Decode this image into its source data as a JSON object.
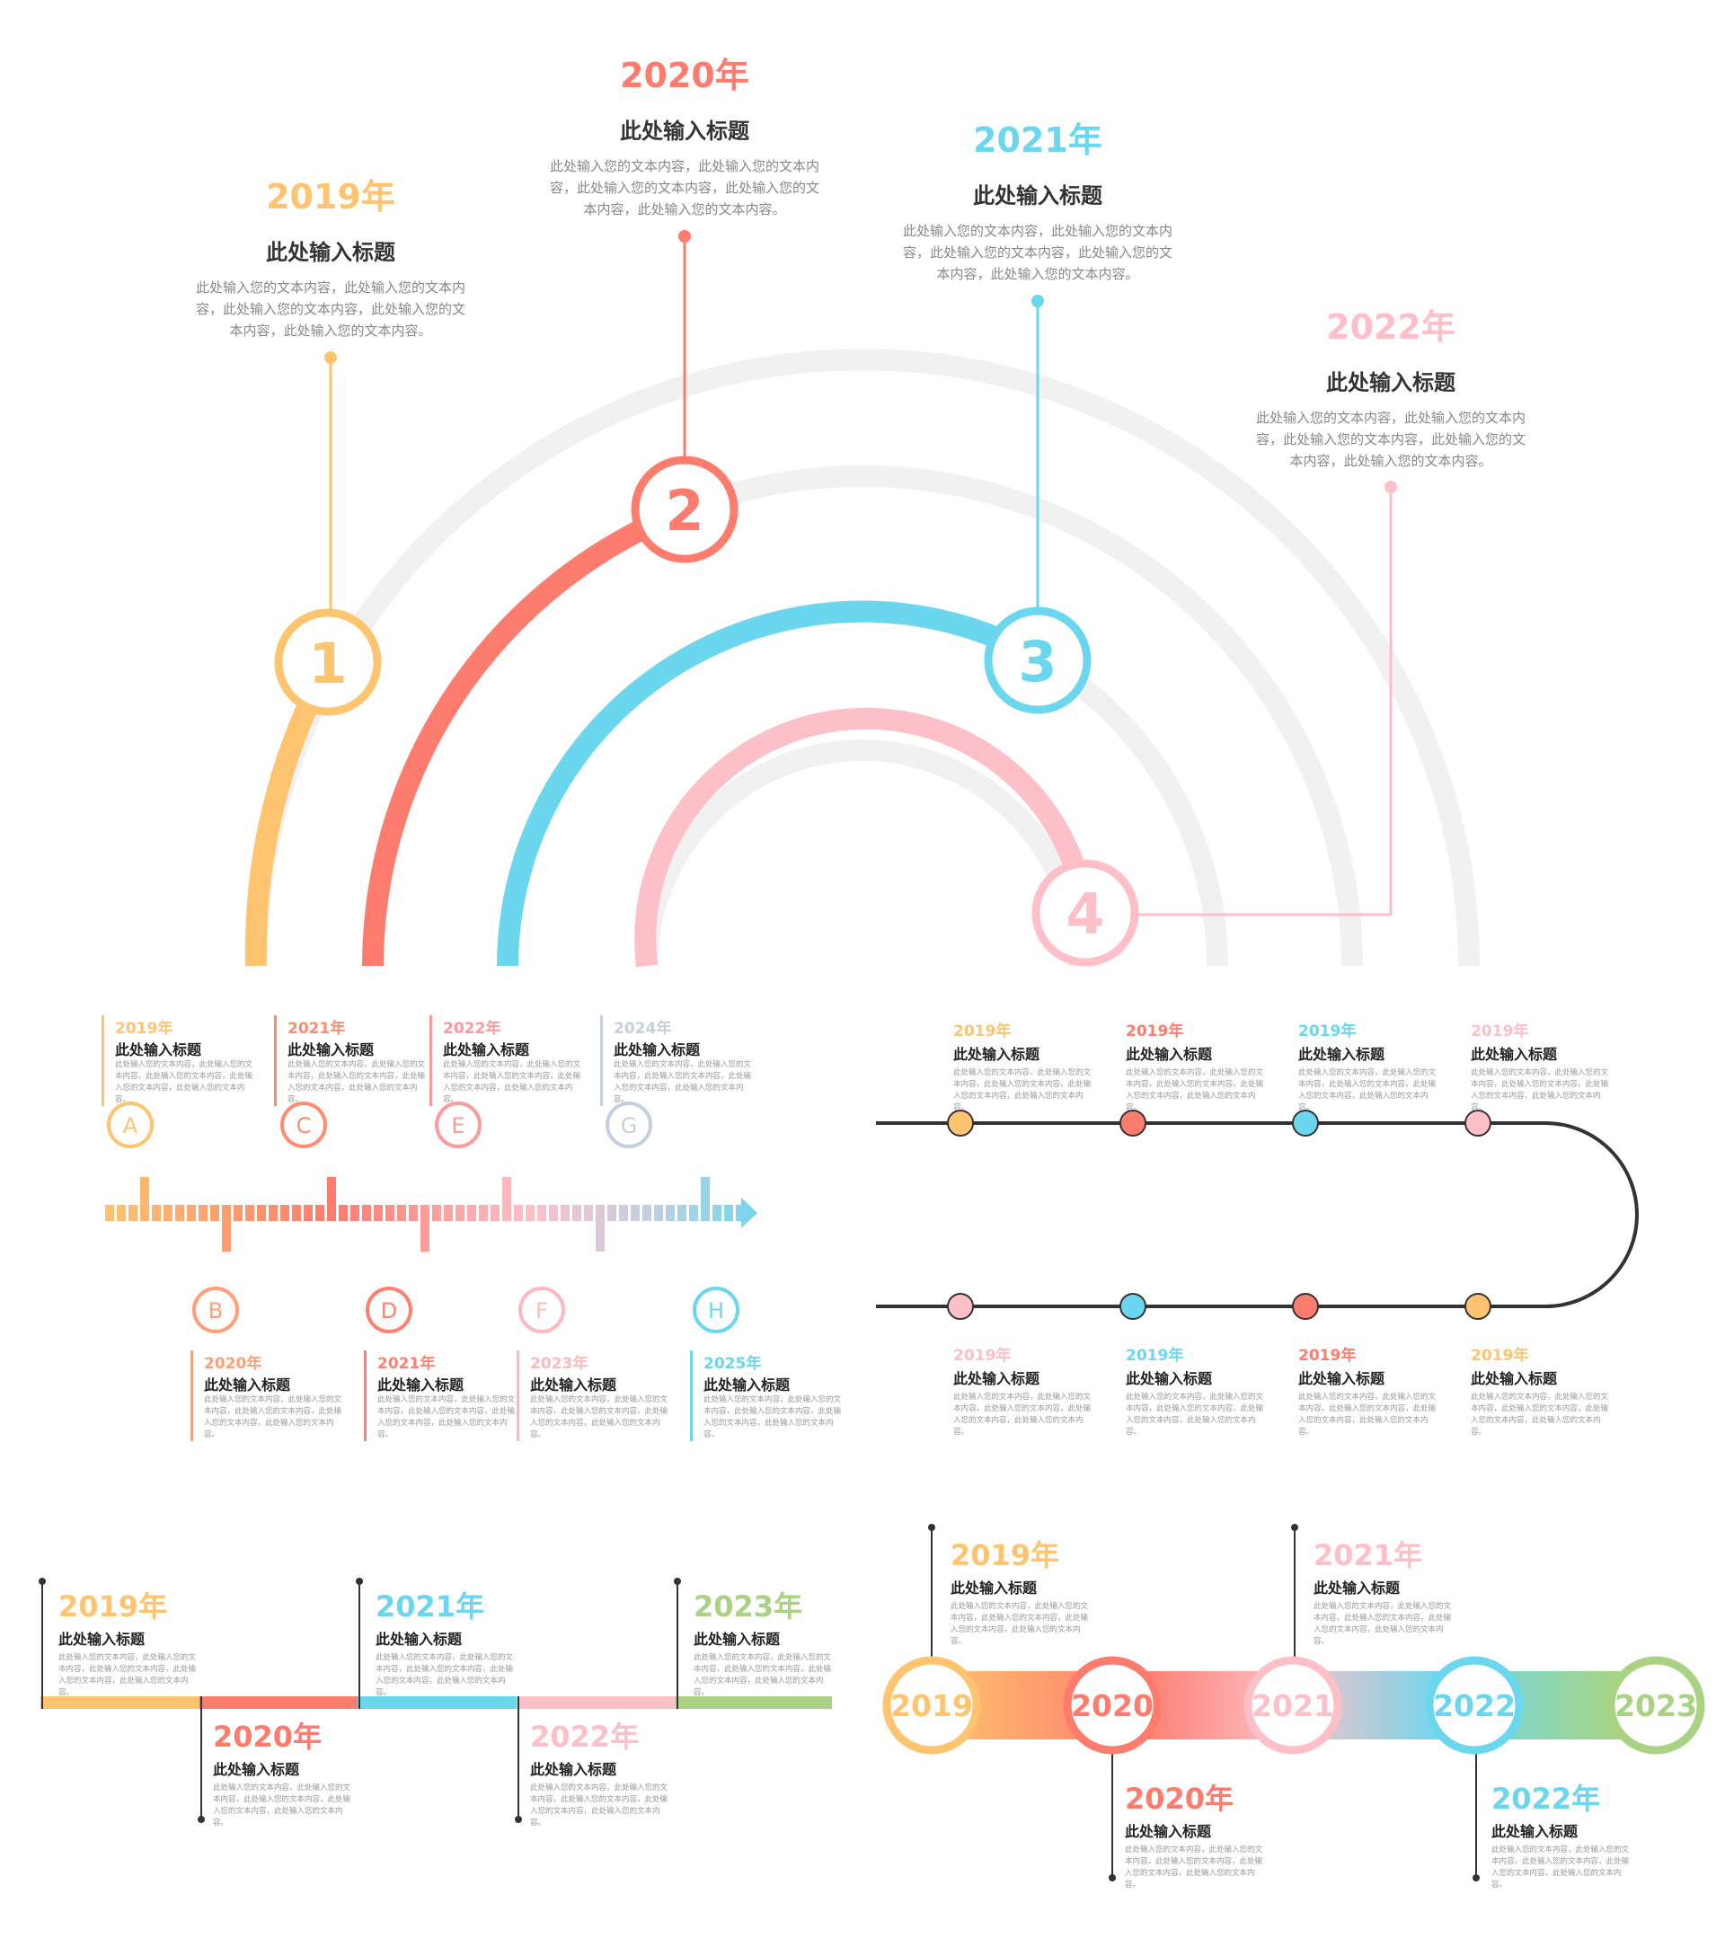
{
  "colors": {
    "yellow": "#fec46f",
    "red": "#fd7c6e",
    "blue": "#6bd7ee",
    "pink": "#fdc0c8",
    "green": "#a9d382",
    "grey": "#f1f1f1",
    "dark": "#333333",
    "lavender": "#c4cfe0"
  },
  "arc": {
    "items": [
      {
        "num": "1",
        "year": "2019年",
        "title": "此处输入标题",
        "body": "此处输入您的文本内容，此处输入您的文本内容，此处输入您的文本内容，此处输入您的文本内容，此处输入您的文本内容。",
        "color": "#fec46f"
      },
      {
        "num": "2",
        "year": "2020年",
        "title": "此处输入标题",
        "body": "此处输入您的文本内容，此处输入您的文本内容，此处输入您的文本内容，此处输入您的文本内容，此处输入您的文本内容。",
        "color": "#fd7c6e"
      },
      {
        "num": "3",
        "year": "2021年",
        "title": "此处输入标题",
        "body": "此处输入您的文本内容，此处输入您的文本内容，此处输入您的文本内容，此处输入您的文本内容，此处输入您的文本内容。",
        "color": "#6bd7ee"
      },
      {
        "num": "4",
        "year": "2022年",
        "title": "此处输入标题",
        "body": "此处输入您的文本内容，此处输入您的文本内容，此处输入您的文本内容，此处输入您的文本内容，此处输入您的文本内容。",
        "color": "#fdc0c8"
      }
    ]
  },
  "barcode": {
    "top": [
      {
        "letter": "A",
        "year": "2019年",
        "title": "此处输入标题",
        "body": "此处输入您的文本内容，此处输入您的文本内容，此处输入您的文本内容，此处输入您的文本内容，此处输入您的文本内容。",
        "color": "#fec46f"
      },
      {
        "letter": "C",
        "year": "2021年",
        "title": "此处输入标题",
        "body": "此处输入您的文本内容，此处输入您的文本内容，此处输入您的文本内容，此处输入您的文本内容，此处输入您的文本内容。",
        "color": "#fd8d6e"
      },
      {
        "letter": "E",
        "year": "2022年",
        "title": "此处输入标题",
        "body": "此处输入您的文本内容，此处输入您的文本内容，此处输入您的文本内容，此处输入您的文本内容，此处输入您的文本内容。",
        "color": "#fd9a9c"
      },
      {
        "letter": "G",
        "year": "2024年",
        "title": "此处输入标题",
        "body": "此处输入您的文本内容，此处输入您的文本内容，此处输入您的文本内容，此处输入您的文本内容，此处输入您的文本内容。",
        "color": "#c4cfe0"
      }
    ],
    "bottom": [
      {
        "letter": "B",
        "year": "2020年",
        "title": "此处输入标题",
        "body": "此处输入您的文本内容，此处输入您的文本内容，此处输入您的文本内容，此处输入您的文本内容，此处输入您的文本内容。",
        "color": "#fda078"
      },
      {
        "letter": "D",
        "year": "2021年",
        "title": "此处输入标题",
        "body": "此处输入您的文本内容，此处输入您的文本内容，此处输入您的文本内容，此处输入您的文本内容，此处输入您的文本内容。",
        "color": "#fd8170"
      },
      {
        "letter": "F",
        "year": "2023年",
        "title": "此处输入标题",
        "body": "此处输入您的文本内容，此处输入您的文本内容，此处输入您的文本内容，此处输入您的文本内容，此处输入您的文本内容。",
        "color": "#fdb8c0"
      },
      {
        "letter": "H",
        "year": "2025年",
        "title": "此处输入标题",
        "body": "此处输入您的文本内容，此处输入您的文本内容，此处输入您的文本内容，此处输入您的文本内容，此处输入您的文本内容。",
        "color": "#6bd7ee"
      }
    ]
  },
  "serpentine": {
    "top": [
      {
        "year": "2019年",
        "title": "此处输入标题",
        "body": "此处输入您的文本内容，此处输入您的文本内容，此处输入您的文本内容，此处输入您的文本内容，此处输入您的文本内容。",
        "color": "#fec46f"
      },
      {
        "year": "2019年",
        "title": "此处输入标题",
        "body": "此处输入您的文本内容，此处输入您的文本内容，此处输入您的文本内容，此处输入您的文本内容，此处输入您的文本内容。",
        "color": "#fd7c6e"
      },
      {
        "year": "2019年",
        "title": "此处输入标题",
        "body": "此处输入您的文本内容，此处输入您的文本内容，此处输入您的文本内容，此处输入您的文本内容，此处输入您的文本内容。",
        "color": "#6bd7ee"
      },
      {
        "year": "2019年",
        "title": "此处输入标题",
        "body": "此处输入您的文本内容，此处输入您的文本内容，此处输入您的文本内容，此处输入您的文本内容，此处输入您的文本内容。",
        "color": "#fdc0c8"
      }
    ],
    "bottom": [
      {
        "year": "2019年",
        "title": "此处输入标题",
        "body": "此处输入您的文本内容，此处输入您的文本内容，此处输入您的文本内容，此处输入您的文本内容，此处输入您的文本内容。",
        "color": "#fdc0c8"
      },
      {
        "year": "2019年",
        "title": "此处输入标题",
        "body": "此处输入您的文本内容，此处输入您的文本内容，此处输入您的文本内容，此处输入您的文本内容，此处输入您的文本内容。",
        "color": "#6bd7ee"
      },
      {
        "year": "2019年",
        "title": "此处输入标题",
        "body": "此处输入您的文本内容，此处输入您的文本内容，此处输入您的文本内容，此处输入您的文本内容，此处输入您的文本内容。",
        "color": "#fd7c6e"
      },
      {
        "year": "2019年",
        "title": "此处输入标题",
        "body": "此处输入您的文本内容，此处输入您的文本内容，此处输入您的文本内容，此处输入您的文本内容，此处输入您的文本内容。",
        "color": "#fec46f"
      }
    ]
  },
  "flatline": {
    "items": [
      {
        "year": "2019年",
        "title": "此处输入标题",
        "body": "此处输入您的文本内容，此处输入您的文本内容，此处输入您的文本内容，此处输入您的文本内容，此处输入您的文本内容。",
        "color": "#fec46f"
      },
      {
        "year": "2020年",
        "title": "此处输入标题",
        "body": "此处输入您的文本内容，此处输入您的文本内容，此处输入您的文本内容，此处输入您的文本内容，此处输入您的文本内容。",
        "color": "#fd7c6e"
      },
      {
        "year": "2021年",
        "title": "此处输入标题",
        "body": "此处输入您的文本内容，此处输入您的文本内容，此处输入您的文本内容，此处输入您的文本内容，此处输入您的文本内容。",
        "color": "#6bd7ee"
      },
      {
        "year": "2022年",
        "title": "此处输入标题",
        "body": "此处输入您的文本内容，此处输入您的文本内容，此处输入您的文本内容，此处输入您的文本内容，此处输入您的文本内容。",
        "color": "#fdc0c8"
      },
      {
        "year": "2023年",
        "title": "此处输入标题",
        "body": "此处输入您的文本内容，此处输入您的文本内容，此处输入您的文本内容，此处输入您的文本内容，此处输入您的文本内容。",
        "color": "#a9d382"
      }
    ]
  },
  "gradient": {
    "circles": [
      {
        "label": "2019",
        "color": "#fec46f"
      },
      {
        "label": "2020",
        "color": "#fd7c6e"
      },
      {
        "label": "2021",
        "color": "#fdc0c8"
      },
      {
        "label": "2022",
        "color": "#6bd7ee"
      },
      {
        "label": "2023",
        "color": "#a9d382"
      }
    ],
    "captions": [
      {
        "year": "2019年",
        "title": "此处输入标题",
        "body": "此处输入您的文本内容，此处输入您的文本内容，此处输入您的文本内容，此处输入您的文本内容，此处输入您的文本内容。",
        "color": "#fec46f"
      },
      {
        "year": "2020年",
        "title": "此处输入标题",
        "body": "此处输入您的文本内容，此处输入您的文本内容，此处输入您的文本内容，此处输入您的文本内容，此处输入您的文本内容。",
        "color": "#fd7c6e"
      },
      {
        "year": "2021年",
        "title": "此处输入标题",
        "body": "此处输入您的文本内容，此处输入您的文本内容，此处输入您的文本内容，此处输入您的文本内容，此处输入您的文本内容。",
        "color": "#fdc0c8"
      },
      {
        "year": "2022年",
        "title": "此处输入标题",
        "body": "此处输入您的文本内容，此处输入您的文本内容，此处输入您的文本内容，此处输入您的文本内容，此处输入您的文本内容。",
        "color": "#6bd7ee"
      }
    ]
  }
}
